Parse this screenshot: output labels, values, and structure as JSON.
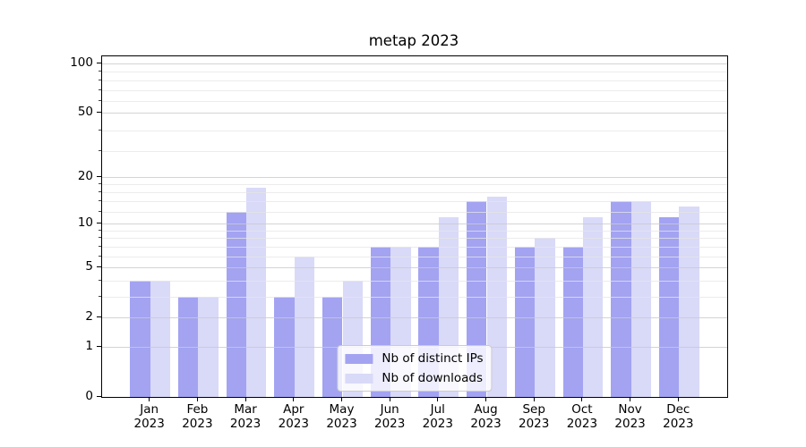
{
  "title": "metap 2023",
  "colors": {
    "ips": "#a3a3f2",
    "downloads": "#d9d9f8",
    "grid_major": "#c9c9c9",
    "grid_minor": "#e6e6e6",
    "axis": "#000000",
    "legend_border": "#cccccc"
  },
  "chart_data": {
    "type": "bar",
    "title": "metap 2023",
    "xlabel": "",
    "ylabel": "",
    "yscale": "log(1+x)",
    "ylim": [
      0,
      110
    ],
    "grid": true,
    "legend_position": "lower center",
    "categories": [
      "Jan",
      "Feb",
      "Mar",
      "Apr",
      "May",
      "Jun",
      "Jul",
      "Aug",
      "Sep",
      "Oct",
      "Nov",
      "Dec"
    ],
    "x_year_label": "2023",
    "yticks": [
      0,
      1,
      2,
      5,
      10,
      20,
      50,
      100
    ],
    "minor_gridlines": [
      3,
      4,
      6,
      7,
      8,
      9,
      12,
      14,
      16,
      18,
      29,
      39,
      59,
      69,
      79,
      89
    ],
    "series": [
      {
        "name": "Nb of distinct IPs",
        "values": [
          4,
          3,
          12,
          3,
          3,
          7,
          7,
          14,
          7,
          7,
          14,
          11
        ]
      },
      {
        "name": "Nb of downloads",
        "values": [
          4,
          3,
          17,
          6,
          4,
          7,
          11,
          15,
          8,
          11,
          14,
          13
        ]
      }
    ]
  }
}
